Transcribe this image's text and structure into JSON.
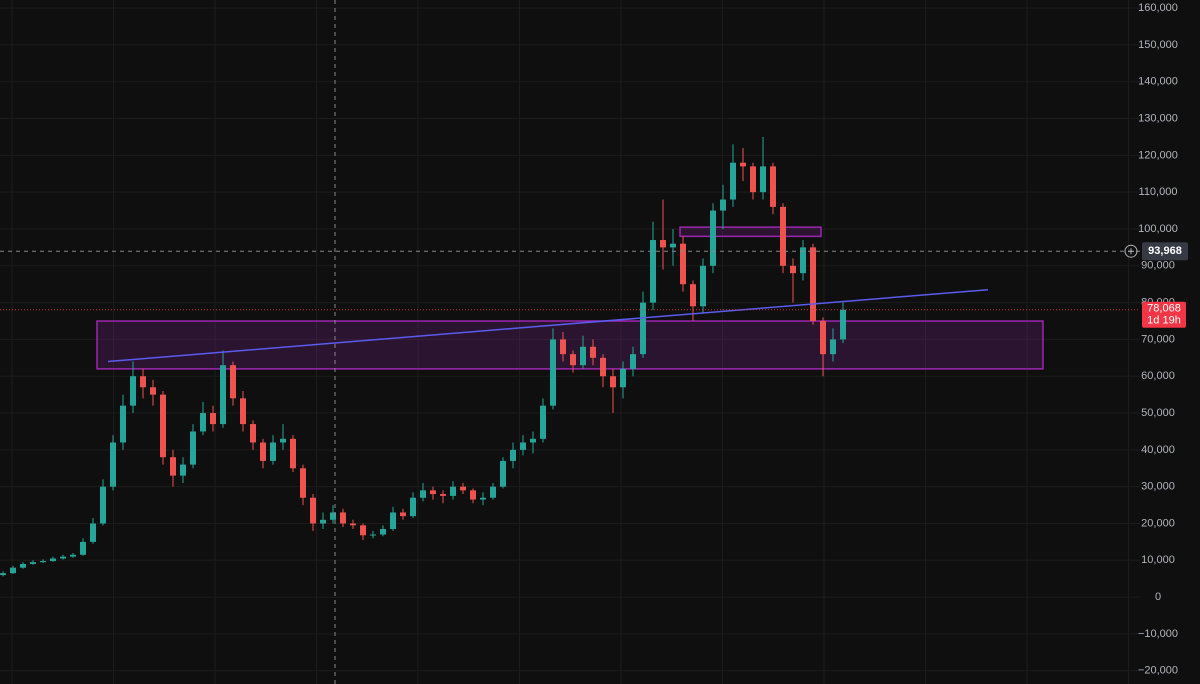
{
  "chart_data": {
    "type": "candlestick",
    "colors": {
      "up": "#26a69a",
      "down": "#ef5350"
    },
    "ylim": [
      -23600,
      162200
    ],
    "yticks": [
      {
        "value": 160000,
        "label": "160,000"
      },
      {
        "value": 150000,
        "label": "150,000"
      },
      {
        "value": 140000,
        "label": "140,000"
      },
      {
        "value": 130000,
        "label": "130,000"
      },
      {
        "value": 120000,
        "label": "120,000"
      },
      {
        "value": 110000,
        "label": "110,000"
      },
      {
        "value": 100000,
        "label": "100,000"
      },
      {
        "value": 90000,
        "label": "90,000"
      },
      {
        "value": 80000,
        "label": "80,000"
      },
      {
        "value": 70000,
        "label": "70,000"
      },
      {
        "value": 60000,
        "label": "60,000"
      },
      {
        "value": 50000,
        "label": "50,000"
      },
      {
        "value": 40000,
        "label": "40,000"
      },
      {
        "value": 30000,
        "label": "30,000"
      },
      {
        "value": 20000,
        "label": "20,000"
      },
      {
        "value": 10000,
        "label": "10,000"
      },
      0,
      {
        "value": -10000,
        "label": "−10,000"
      },
      {
        "value": -20000,
        "label": "−20,000"
      }
    ],
    "grid": true,
    "open": [
      6000,
      6500,
      8000,
      9000,
      9500,
      9800,
      10500,
      11000,
      11500,
      15000,
      20000,
      30000,
      42000,
      52000,
      60000,
      57000,
      55000,
      38000,
      33000,
      36000,
      45000,
      50000,
      47000,
      63000,
      54000,
      47000,
      42000,
      37000,
      42000,
      43000,
      35000,
      27000,
      20000,
      21000,
      23000,
      20000,
      19500,
      16800,
      17000,
      18500,
      23000,
      22000,
      27000,
      29000,
      28000,
      27500,
      30000,
      29000,
      26500,
      27000,
      30000,
      37000,
      40000,
      42000,
      43000,
      52000,
      70000,
      66000,
      63000,
      68000,
      65000,
      60000,
      57000,
      62000,
      66000,
      80000,
      97000,
      95000,
      96000,
      85000,
      79000,
      90000,
      105000,
      108000,
      118000,
      117000,
      110000,
      117000,
      106000,
      90000,
      88000,
      95000,
      75000,
      66000,
      70000
    ],
    "high": [
      7000,
      8500,
      9500,
      10000,
      10300,
      11000,
      11500,
      12000,
      16000,
      21500,
      32000,
      44000,
      55000,
      64000,
      62000,
      59000,
      56000,
      40000,
      38000,
      47000,
      53000,
      52000,
      67000,
      64000,
      56000,
      48000,
      43000,
      44000,
      47000,
      44000,
      36000,
      28000,
      23000,
      25000,
      24000,
      21000,
      20000,
      18000,
      19500,
      24500,
      24000,
      28500,
      31000,
      30000,
      29000,
      31500,
      31000,
      29500,
      28500,
      31000,
      38000,
      42000,
      44000,
      45000,
      54000,
      73000,
      72000,
      67000,
      71000,
      70000,
      66000,
      62000,
      64000,
      68000,
      83000,
      102000,
      108000,
      100000,
      98000,
      86000,
      92000,
      107000,
      112000,
      123000,
      122000,
      118000,
      125000,
      118000,
      107000,
      92000,
      97000,
      96000,
      76000,
      73000,
      80000
    ],
    "low": [
      5600,
      6300,
      7700,
      8800,
      9300,
      9600,
      10200,
      10700,
      11200,
      14500,
      19500,
      29000,
      40000,
      50000,
      54000,
      52000,
      36000,
      30000,
      31000,
      35000,
      44000,
      45000,
      46000,
      52000,
      45000,
      40000,
      35000,
      36000,
      40000,
      34000,
      25000,
      18000,
      18500,
      20000,
      19000,
      18500,
      15500,
      16000,
      16500,
      18000,
      21000,
      21500,
      26000,
      26500,
      25500,
      26500,
      28000,
      25500,
      25000,
      26500,
      29500,
      35000,
      38500,
      39000,
      42000,
      51000,
      64000,
      61000,
      62000,
      63000,
      57000,
      50000,
      54000,
      60000,
      65000,
      78000,
      89000,
      90000,
      83000,
      75000,
      77000,
      88000,
      100000,
      106000,
      113000,
      108000,
      108000,
      104000,
      88000,
      80000,
      86000,
      74000,
      60000,
      64000,
      69000
    ],
    "close": [
      6500,
      8000,
      9000,
      9500,
      9800,
      10500,
      11000,
      11500,
      15000,
      20000,
      30000,
      42000,
      52000,
      60000,
      57000,
      55000,
      38000,
      33000,
      36000,
      45000,
      50000,
      47000,
      63000,
      54000,
      47000,
      42000,
      37000,
      42000,
      43000,
      35000,
      27000,
      20000,
      21000,
      23000,
      20000,
      19500,
      16800,
      17000,
      18500,
      23000,
      22000,
      27000,
      29000,
      28000,
      27500,
      30000,
      29000,
      26500,
      27000,
      30000,
      37000,
      40000,
      42000,
      43000,
      52000,
      70000,
      66000,
      63000,
      68000,
      65000,
      60000,
      57000,
      62000,
      66000,
      80000,
      97000,
      95000,
      96000,
      85000,
      79000,
      90000,
      105000,
      108000,
      118000,
      117000,
      110000,
      117000,
      106000,
      90000,
      88000,
      95000,
      75000,
      66000,
      70000,
      78068
    ],
    "zones": [
      {
        "low": 62000,
        "high": 75000,
        "color": "#9c27b0"
      },
      {
        "low": 98000,
        "high": 100500,
        "color": "#9c27b0"
      }
    ],
    "trendline": {
      "start": 64000,
      "end": 83500,
      "color": "#5b5bf0"
    },
    "crosshair": {
      "value": 93968,
      "label": "93,968"
    },
    "last_price": {
      "value": 78068,
      "label": "78,068",
      "countdown": "1d 19h",
      "color": "#f23645"
    }
  }
}
